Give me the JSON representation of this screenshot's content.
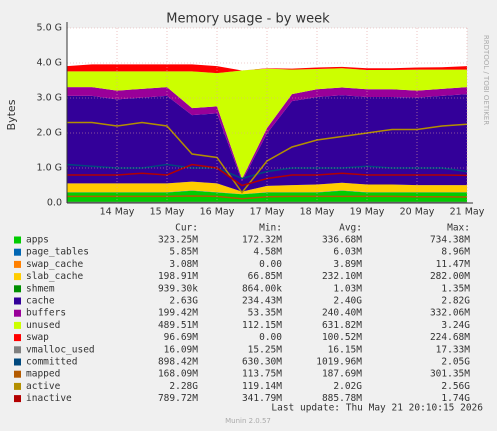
{
  "chart_data": {
    "type": "stacked-area",
    "title": "Memory usage - by week",
    "y_label": "Bytes",
    "side_text": "RRDTOOL / TOBI OETIKER",
    "last_update": "Last update: Thu May 21 20:10:15 2026",
    "version": "Munin 2.0.57",
    "grid": true,
    "categories": [
      null,
      null,
      "14 May",
      null,
      "15 May",
      null,
      "16 May",
      null,
      "17 May",
      null,
      "18 May",
      null,
      "19 May",
      null,
      "20 May",
      null,
      "21 May"
    ],
    "ylim": [
      0,
      5
    ],
    "yticks": [
      {
        "value": 0,
        "label": "0.0"
      },
      {
        "value": 1,
        "label": "1.0 G"
      },
      {
        "value": 2,
        "label": "2.0 G"
      },
      {
        "value": 3,
        "label": "3.0 G"
      },
      {
        "value": 4,
        "label": "4.0 G"
      },
      {
        "value": 5,
        "label": "5.0 G"
      }
    ],
    "stat_headers": [
      "Cur:",
      "Min:",
      "Avg:",
      "Max:"
    ],
    "series": [
      {
        "name": "apps",
        "color": "#00cc00",
        "kind": "area",
        "stats": [
          "323.25M",
          "172.32M",
          "336.68M",
          "734.38M"
        ],
        "values": [
          0.3,
          0.3,
          0.3,
          0.3,
          0.3,
          0.35,
          0.3,
          0.25,
          0.3,
          0.3,
          0.3,
          0.35,
          0.3,
          0.3,
          0.3,
          0.3,
          0.3
        ]
      },
      {
        "name": "page_tables",
        "color": "#0066b3",
        "kind": "area",
        "stats": [
          "5.85M",
          "4.58M",
          "6.03M",
          "8.96M"
        ],
        "values": [
          0.006,
          0.006,
          0.006,
          0.006,
          0.006,
          0.006,
          0.006,
          0.005,
          0.006,
          0.006,
          0.006,
          0.006,
          0.006,
          0.006,
          0.006,
          0.006,
          0.006
        ]
      },
      {
        "name": "swap_cache",
        "color": "#ff8000",
        "kind": "area",
        "stats": [
          "3.08M",
          "0.00",
          "3.89M",
          "11.47M"
        ],
        "values": [
          0.004,
          0.004,
          0.004,
          0.004,
          0.004,
          0.004,
          0.004,
          0,
          0.003,
          0.003,
          0.003,
          0.003,
          0.003,
          0.003,
          0.003,
          0.003,
          0.003
        ]
      },
      {
        "name": "slab_cache",
        "color": "#ffcc00",
        "kind": "area",
        "stats": [
          "198.91M",
          "66.85M",
          "232.10M",
          "282.00M"
        ],
        "values": [
          0.25,
          0.25,
          0.25,
          0.25,
          0.25,
          0.25,
          0.25,
          0.07,
          0.18,
          0.2,
          0.22,
          0.22,
          0.22,
          0.22,
          0.2,
          0.2,
          0.2
        ]
      },
      {
        "name": "shmem",
        "color": "#008f00",
        "kind": "area",
        "stats": [
          "939.30k",
          "864.00k",
          "1.03M",
          "1.35M"
        ],
        "values": [
          0.001,
          0.001,
          0.001,
          0.001,
          0.001,
          0.001,
          0.001,
          0.001,
          0.001,
          0.001,
          0.001,
          0.001,
          0.001,
          0.001,
          0.001,
          0.001,
          0.001
        ]
      },
      {
        "name": "cache",
        "color": "#330099",
        "kind": "area",
        "stats": [
          "2.63G",
          "234.43M",
          "2.40G",
          "2.82G"
        ],
        "values": [
          2.5,
          2.5,
          2.4,
          2.45,
          2.5,
          1.9,
          2.0,
          0.3,
          1.5,
          2.4,
          2.5,
          2.5,
          2.5,
          2.5,
          2.5,
          2.55,
          2.6
        ]
      },
      {
        "name": "buffers",
        "color": "#990099",
        "kind": "area",
        "stats": [
          "199.42M",
          "53.35M",
          "240.40M",
          "332.06M"
        ],
        "values": [
          0.25,
          0.25,
          0.25,
          0.25,
          0.25,
          0.2,
          0.2,
          0.06,
          0.15,
          0.2,
          0.22,
          0.22,
          0.22,
          0.22,
          0.2,
          0.2,
          0.2
        ]
      },
      {
        "name": "unused",
        "color": "#ccff00",
        "kind": "area",
        "stats": [
          "489.51M",
          "112.15M",
          "631.82M",
          "3.24G"
        ],
        "values": [
          0.45,
          0.45,
          0.55,
          0.5,
          0.45,
          1.05,
          0.95,
          3.1,
          1.7,
          0.7,
          0.58,
          0.55,
          0.55,
          0.55,
          0.6,
          0.55,
          0.5
        ]
      },
      {
        "name": "swap",
        "color": "#ff0000",
        "kind": "area",
        "stats": [
          "96.69M",
          "0.00",
          "100.52M",
          "224.68M"
        ],
        "values": [
          0.15,
          0.2,
          0.2,
          0.2,
          0.2,
          0.2,
          0.2,
          0.0,
          0.01,
          0.03,
          0.04,
          0.04,
          0.05,
          0.05,
          0.06,
          0.07,
          0.1
        ]
      },
      {
        "name": "vmalloc_used",
        "color": "#808080",
        "kind": "line",
        "stats": [
          "16.09M",
          "15.25M",
          "16.15M",
          "17.33M"
        ],
        "values": [
          0.016,
          0.016,
          0.016,
          0.016,
          0.016,
          0.016,
          0.016,
          0.015,
          0.016,
          0.016,
          0.016,
          0.016,
          0.016,
          0.016,
          0.016,
          0.016,
          0.016
        ]
      },
      {
        "name": "committed",
        "color": "#00487d",
        "kind": "line",
        "stats": [
          "898.42M",
          "630.30M",
          "1019.96M",
          "2.05G"
        ],
        "values": [
          1.1,
          1.05,
          1.0,
          1.0,
          1.1,
          1.0,
          1.0,
          0.7,
          0.9,
          1.0,
          1.0,
          1.0,
          1.05,
          1.0,
          1.0,
          1.0,
          0.9
        ]
      },
      {
        "name": "mapped",
        "color": "#b35a00",
        "kind": "line",
        "stats": [
          "168.09M",
          "113.75M",
          "187.69M",
          "301.35M"
        ],
        "values": [
          0.19,
          0.19,
          0.19,
          0.19,
          0.19,
          0.2,
          0.19,
          0.12,
          0.18,
          0.19,
          0.19,
          0.19,
          0.19,
          0.19,
          0.18,
          0.18,
          0.17
        ]
      },
      {
        "name": "active",
        "color": "#b38f00",
        "kind": "line",
        "stats": [
          "2.28G",
          "119.14M",
          "2.02G",
          "2.56G"
        ],
        "values": [
          2.3,
          2.3,
          2.2,
          2.3,
          2.2,
          1.4,
          1.3,
          0.3,
          1.2,
          1.6,
          1.8,
          1.9,
          2.0,
          2.1,
          2.1,
          2.2,
          2.25
        ]
      },
      {
        "name": "inactive",
        "color": "#b30000",
        "kind": "line",
        "stats": [
          "789.72M",
          "341.79M",
          "885.78M",
          "1.74G"
        ],
        "values": [
          0.8,
          0.8,
          0.8,
          0.85,
          0.8,
          1.1,
          1.0,
          0.5,
          0.7,
          0.8,
          0.8,
          0.85,
          0.8,
          0.8,
          0.8,
          0.8,
          0.79
        ]
      }
    ]
  }
}
